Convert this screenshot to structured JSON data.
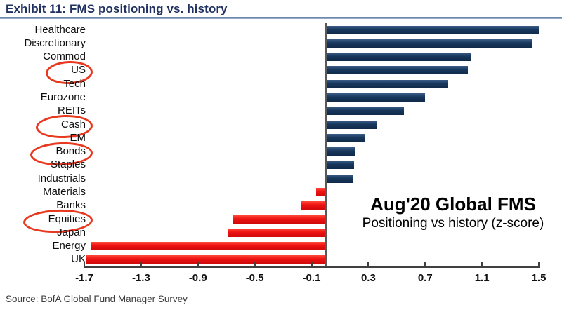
{
  "header": {
    "title": "Exhibit 11: FMS positioning vs. history"
  },
  "chart_data": {
    "type": "bar",
    "orientation": "horizontal",
    "title": "Aug'20 Global FMS",
    "subtitle": "Positioning vs history (z-score)",
    "xlim": [
      -1.7,
      1.5
    ],
    "x_ticks": [
      "-1.7",
      "-1.3",
      "-0.9",
      "-0.5",
      "-0.1",
      "0.3",
      "0.7",
      "1.1",
      "1.5"
    ],
    "x_tick_values": [
      -1.7,
      -1.3,
      -0.9,
      -0.5,
      -0.1,
      0.3,
      0.7,
      1.1,
      1.5
    ],
    "grid": false,
    "legend": "none",
    "categories": [
      {
        "label": "Healthcare",
        "value": 1.5,
        "circled": false
      },
      {
        "label": "Discretionary",
        "value": 1.45,
        "circled": false
      },
      {
        "label": "Commod",
        "value": 1.02,
        "circled": false
      },
      {
        "label": "US",
        "value": 1.0,
        "circled": true
      },
      {
        "label": "Tech",
        "value": 0.86,
        "circled": false
      },
      {
        "label": "Eurozone",
        "value": 0.7,
        "circled": false
      },
      {
        "label": "REITs",
        "value": 0.55,
        "circled": false
      },
      {
        "label": "Cash",
        "value": 0.36,
        "circled": true
      },
      {
        "label": "EM",
        "value": 0.28,
        "circled": false
      },
      {
        "label": "Bonds",
        "value": 0.21,
        "circled": true
      },
      {
        "label": "Staples",
        "value": 0.2,
        "circled": false
      },
      {
        "label": "Industrials",
        "value": 0.19,
        "circled": false
      },
      {
        "label": "Materials",
        "value": -0.07,
        "circled": false
      },
      {
        "label": "Banks",
        "value": -0.17,
        "circled": false
      },
      {
        "label": "Equities",
        "value": -0.65,
        "circled": true
      },
      {
        "label": "Japan",
        "value": -0.69,
        "circled": false
      },
      {
        "label": "Energy",
        "value": -1.65,
        "circled": false
      },
      {
        "label": "UK",
        "value": -1.69,
        "circled": false
      }
    ],
    "colors": {
      "positive_bar": "#17375c",
      "negative_bar": "#ee1111",
      "circle": "#e8391f",
      "title_text": "#1f3061",
      "underline": "#93a9c6"
    }
  },
  "footer": {
    "source": "Source: BofA Global Fund Manager Survey"
  }
}
